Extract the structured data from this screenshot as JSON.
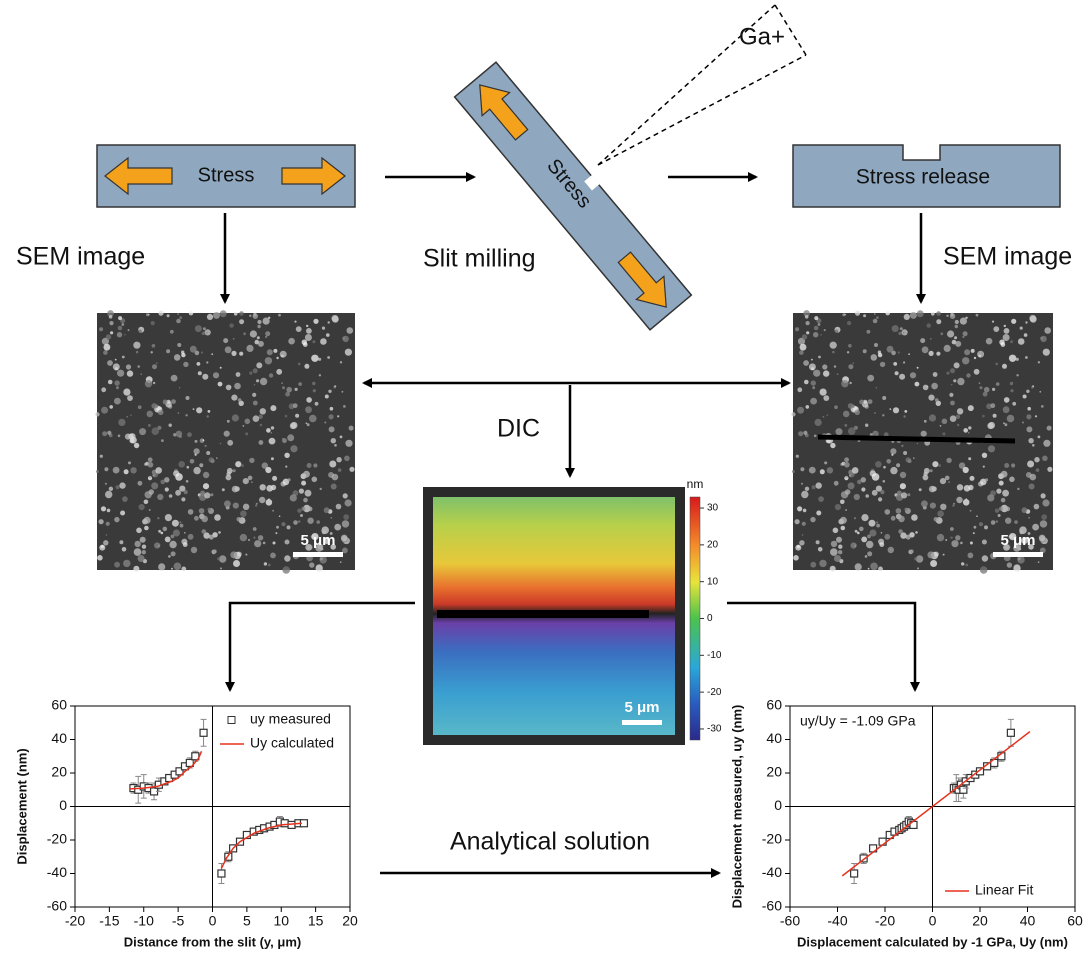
{
  "diagram": {
    "top_boxes": [
      "Stress",
      "Stress",
      "Stress release"
    ],
    "ion": "Ga+",
    "labels": {
      "sem_left": "SEM image",
      "slit": "Slit milling",
      "sem_right": "SEM image",
      "dic": "DIC",
      "analytical": "Analytical solution"
    },
    "scale_bars": [
      "5 μm",
      "5 μm",
      "5 μm"
    ],
    "colorbar": {
      "label": "nm",
      "lim": [
        -33,
        33
      ],
      "ticks": [
        30,
        20,
        10,
        0,
        -10,
        -20,
        -30
      ]
    }
  },
  "chart_data": [
    {
      "type": "scatter",
      "xlabel": "Distance from the slit (y, μm)",
      "ylabel": "Displacement (nm)",
      "xlim": [
        -20,
        20
      ],
      "xticks": [
        -20,
        -15,
        -10,
        -5,
        0,
        5,
        10,
        15,
        20
      ],
      "ylim": [
        -60,
        60
      ],
      "yticks": [
        -60,
        -40,
        -20,
        0,
        20,
        40,
        60
      ],
      "legend": "upper right",
      "series": [
        {
          "name": "uy measured",
          "style": "markers",
          "color": "#333333",
          "x": [
            -11.5,
            -10.8,
            -10,
            -9.3,
            -8.5,
            -7.8,
            -7,
            -6.3,
            -5.5,
            -4.8,
            -4,
            -3.3,
            -2.5,
            -1.3,
            1.3,
            2.3,
            3,
            4,
            5,
            6,
            6.8,
            7.5,
            8.3,
            9,
            9.8,
            10.5,
            11.5,
            12.5,
            13.3
          ],
          "values": [
            11,
            10,
            12,
            11,
            9,
            13,
            15,
            17,
            19,
            21,
            24,
            26,
            30,
            44,
            -40,
            -30,
            -25,
            -21,
            -17,
            -15,
            -14,
            -13,
            -12,
            -11,
            -9,
            -10,
            -11,
            -10,
            -10
          ],
          "errors": [
            3,
            8,
            7,
            3,
            5,
            4,
            2,
            2,
            2,
            2,
            2,
            3,
            3,
            8,
            6,
            3,
            2,
            2,
            2,
            2,
            2,
            2,
            2,
            2,
            3,
            2,
            2,
            1,
            1
          ]
        },
        {
          "name": "Uy calculated",
          "style": "line",
          "color": "#e8321e",
          "x": [
            -12,
            -10,
            -8,
            -6,
            -5,
            -4,
            -3,
            -2,
            -1.6,
            0,
            1.3,
            2,
            3,
            4,
            6,
            8,
            10,
            13
          ],
          "values": [
            10.5,
            11,
            12,
            15,
            17,
            21,
            24,
            29,
            33,
            null,
            -37,
            -31,
            -25,
            -21,
            -16,
            -13,
            -11,
            -10
          ]
        }
      ]
    },
    {
      "type": "scatter",
      "xlabel": "Displacement calculated by -1 GPa, Uy (nm)",
      "ylabel": "Displacement measured, uy (nm)",
      "annotation": "uy/Uy = -1.09 GPa",
      "xlim": [
        -60,
        60
      ],
      "xticks": [
        -60,
        -40,
        -20,
        0,
        20,
        40,
        60
      ],
      "ylim": [
        -60,
        60
      ],
      "yticks": [
        -60,
        -40,
        -20,
        0,
        20,
        40,
        60
      ],
      "legend": "lower right",
      "series": [
        {
          "style": "markers",
          "color": "#333333",
          "x": [
            -33,
            -29,
            -25,
            -21,
            -18,
            -16,
            -14,
            -13,
            -12,
            -11,
            -10,
            -9,
            -8,
            9,
            10,
            11,
            12,
            13,
            14,
            16,
            18,
            20,
            23,
            26,
            29,
            33
          ],
          "values": [
            -40,
            -31,
            -25,
            -21,
            -17,
            -15,
            -14,
            -13,
            -12,
            -11,
            -9,
            -10,
            -11,
            11,
            11,
            10,
            13,
            10,
            15,
            17,
            19,
            21,
            24,
            26,
            30,
            44
          ],
          "errors": [
            6,
            3,
            2,
            2,
            2,
            2,
            2,
            2,
            2,
            2,
            3,
            2,
            2,
            3,
            8,
            7,
            3,
            5,
            4,
            2,
            2,
            2,
            2,
            3,
            3,
            8
          ]
        },
        {
          "name": "Linear Fit",
          "style": "line",
          "color": "#e8321e",
          "x": [
            -38,
            41
          ],
          "values": [
            -41.4,
            44.7
          ]
        }
      ]
    }
  ]
}
